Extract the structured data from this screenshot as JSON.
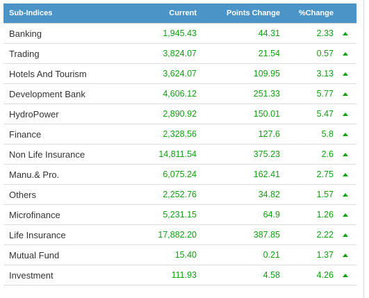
{
  "colors": {
    "header_bg": "#4b94c8",
    "positive": "#11a011"
  },
  "table": {
    "headers": {
      "name": "Sub-Indices",
      "current": "Current",
      "points_change": "Points Change",
      "pct_change": "%Change"
    },
    "rows": [
      {
        "name": "Banking",
        "current": "1,945.43",
        "points_change": "44.31",
        "pct_change": "2.33",
        "trend_icon": "up-arrow-icon"
      },
      {
        "name": "Trading",
        "current": "3,824.07",
        "points_change": "21.54",
        "pct_change": "0.57",
        "trend_icon": "up-arrow-icon"
      },
      {
        "name": "Hotels And Tourism",
        "current": "3,624.07",
        "points_change": "109.95",
        "pct_change": "3.13",
        "trend_icon": "up-arrow-icon"
      },
      {
        "name": "Development Bank",
        "current": "4,606.12",
        "points_change": "251.33",
        "pct_change": "5.77",
        "trend_icon": "up-arrow-icon"
      },
      {
        "name": "HydroPower",
        "current": "2,890.92",
        "points_change": "150.01",
        "pct_change": "5.47",
        "trend_icon": "up-arrow-icon"
      },
      {
        "name": "Finance",
        "current": "2,328.56",
        "points_change": "127.6",
        "pct_change": "5.8",
        "trend_icon": "up-arrow-icon"
      },
      {
        "name": "Non Life Insurance",
        "current": "14,811.54",
        "points_change": "375.23",
        "pct_change": "2.6",
        "trend_icon": "up-arrow-icon"
      },
      {
        "name": "Manu.& Pro.",
        "current": "6,075.24",
        "points_change": "162.41",
        "pct_change": "2.75",
        "trend_icon": "up-arrow-icon"
      },
      {
        "name": "Others",
        "current": "2,252.76",
        "points_change": "34.82",
        "pct_change": "1.57",
        "trend_icon": "up-arrow-icon"
      },
      {
        "name": "Microfinance",
        "current": "5,231.15",
        "points_change": "64.9",
        "pct_change": "1.26",
        "trend_icon": "up-arrow-icon"
      },
      {
        "name": "Life Insurance",
        "current": "17,882.20",
        "points_change": "387.85",
        "pct_change": "2.22",
        "trend_icon": "up-arrow-icon"
      },
      {
        "name": "Mutual Fund",
        "current": "15.40",
        "points_change": "0.21",
        "pct_change": "1.37",
        "trend_icon": "up-arrow-icon"
      },
      {
        "name": "Investment",
        "current": "111.93",
        "points_change": "4.58",
        "pct_change": "4.26",
        "trend_icon": "up-arrow-icon"
      }
    ]
  }
}
